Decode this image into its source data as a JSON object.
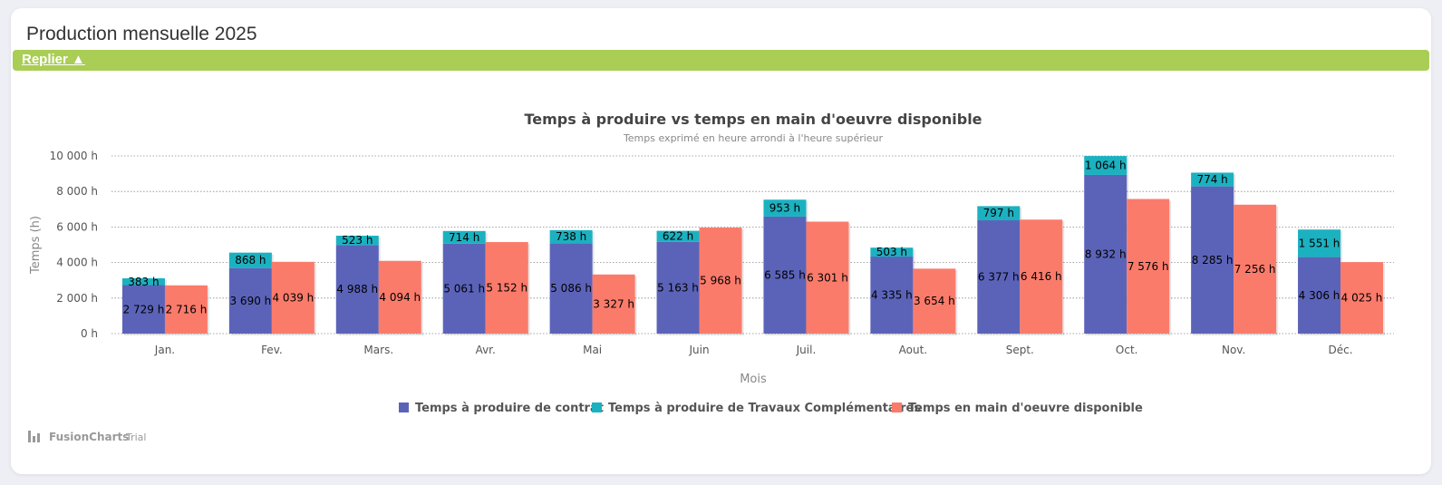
{
  "card": {
    "title": "Production mensuelle 2025",
    "collapse_label": "Replier ▲"
  },
  "watermark": {
    "brand": "FusionCharts",
    "suffix": "Trial"
  },
  "colors": {
    "contract": "#5b63b9",
    "complementary": "#1cb1c0",
    "available": "#fb7b6b",
    "collapse_bar": "#a9cd55"
  },
  "chart_data": {
    "type": "bar",
    "stacked_group": true,
    "title": "Temps à produire vs temps en main d'oeuvre disponible",
    "subtitle": "Temps exprimé en heure arrondi à l'heure supérieur",
    "xlabel": "Mois",
    "ylabel": "Temps (h)",
    "ylim": [
      0,
      10000
    ],
    "yticks": [
      "0 h",
      "2 000 h",
      "4 000 h",
      "6 000 h",
      "8 000 h",
      "10 000 h"
    ],
    "grid": true,
    "legend_position": "bottom",
    "categories": [
      "Jan.",
      "Fev.",
      "Mars.",
      "Avr.",
      "Mai",
      "Juin",
      "Juil.",
      "Aout.",
      "Sept.",
      "Oct.",
      "Nov.",
      "Déc."
    ],
    "series": [
      {
        "name": "Temps à produire de contrat",
        "stack": "a",
        "values": [
          2729,
          3690,
          4988,
          5061,
          5086,
          5163,
          6585,
          4335,
          6377,
          8932,
          8285,
          4306
        ],
        "labels": [
          "2 729 h",
          "3 690 h",
          "4 988 h",
          "5 061 h",
          "5 086 h",
          "5 163 h",
          "6 585 h",
          "4 335 h",
          "6 377 h",
          "8 932 h",
          "8 285 h",
          "4 306 h"
        ]
      },
      {
        "name": "Temps à produire de Travaux Complémentaires",
        "stack": "a",
        "values": [
          383,
          868,
          523,
          714,
          738,
          622,
          953,
          503,
          797,
          1064,
          774,
          1551
        ],
        "labels": [
          "383 h",
          "868 h",
          "523 h",
          "714 h",
          "738 h",
          "622 h",
          "953 h",
          "503 h",
          "797 h",
          "1 064 h",
          "774 h",
          "1 551 h"
        ]
      },
      {
        "name": "Temps en main d'oeuvre disponible",
        "stack": "b",
        "values": [
          2716,
          4039,
          4094,
          5152,
          3327,
          5968,
          6301,
          3654,
          6416,
          7576,
          7256,
          4025
        ],
        "labels": [
          "2 716 h",
          "4 039 h",
          "4 094 h",
          "5 152 h",
          "3 327 h",
          "5 968 h",
          "6 301 h",
          "3 654 h",
          "6 416 h",
          "7 576 h",
          "7 256 h",
          "4 025 h"
        ]
      }
    ]
  }
}
